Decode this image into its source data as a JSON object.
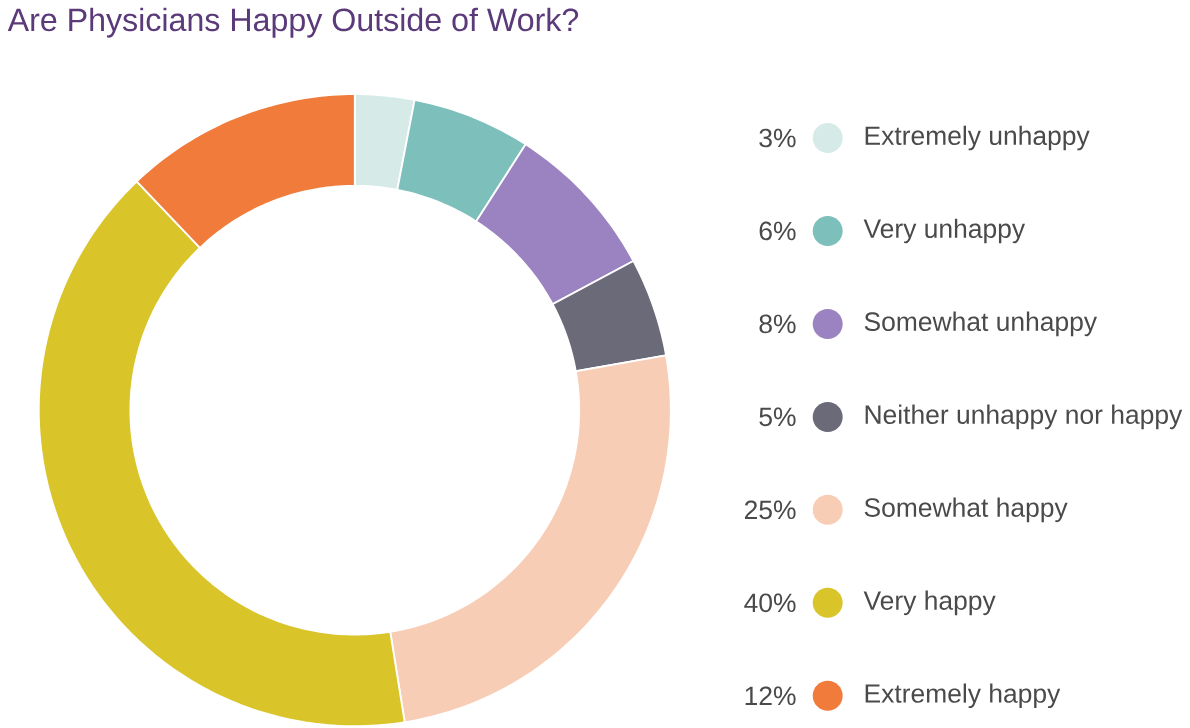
{
  "chart_data": {
    "type": "donut",
    "title": "Are Physicians Happy Outside of Work?",
    "categories": [
      "Extremely unhappy",
      "Very unhappy",
      "Somewhat unhappy",
      "Neither unhappy nor happy",
      "Somewhat happy",
      "Very happy",
      "Extremely happy"
    ],
    "values": [
      3,
      6,
      8,
      5,
      25,
      40,
      12
    ],
    "value_labels": [
      "3%",
      "6%",
      "8%",
      "5%",
      "25%",
      "40%",
      "12%"
    ],
    "colors": [
      "#d6ebe8",
      "#7dbfba",
      "#9b82c0",
      "#6b6a78",
      "#f8cdb5",
      "#d9c52a",
      "#f07b3a"
    ],
    "legend": "right"
  }
}
